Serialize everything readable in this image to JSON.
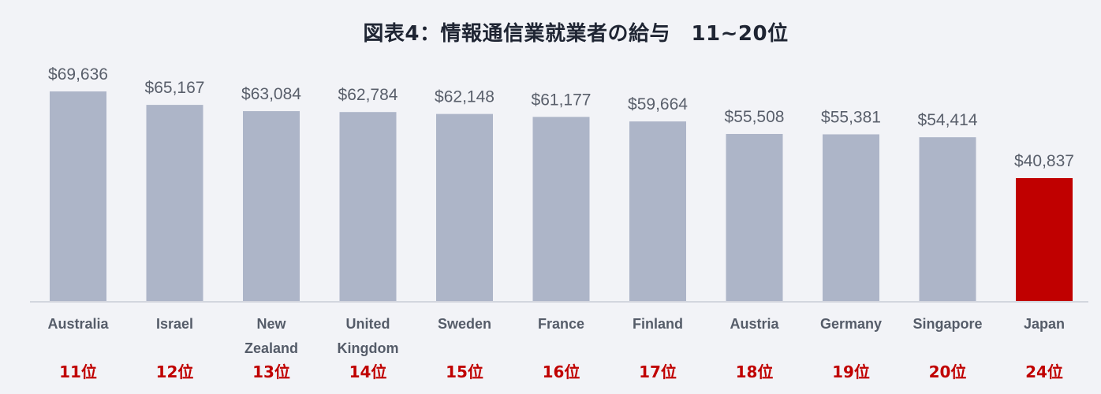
{
  "chart_data": {
    "type": "bar",
    "title": "図表4：情報通信業就業者の給与　11~20位",
    "xlabel": "",
    "ylabel": "",
    "ylim": [
      0,
      72000
    ],
    "grid": false,
    "legend": "none",
    "categories": [
      [
        "Australia"
      ],
      [
        "Israel"
      ],
      [
        "New",
        "Zealand"
      ],
      [
        "United",
        "Kingdom"
      ],
      [
        "Sweden"
      ],
      [
        "France"
      ],
      [
        "Finland"
      ],
      [
        "Austria"
      ],
      [
        "Germany"
      ],
      [
        "Singapore"
      ],
      [
        "Japan"
      ]
    ],
    "ranks": [
      "11位",
      "12位",
      "13位",
      "14位",
      "15位",
      "16位",
      "17位",
      "18位",
      "19位",
      "20位",
      "24位"
    ],
    "values": [
      69636,
      65167,
      63084,
      62784,
      62148,
      61177,
      59664,
      55508,
      55381,
      54414,
      40837
    ],
    "value_labels": [
      "$69,636",
      "$65,167",
      "$63,084",
      "$62,784",
      "$62,148",
      "$61,177",
      "$59,664",
      "$55,508",
      "$55,381",
      "$54,414",
      "$40,837"
    ],
    "highlight_index": 10,
    "colors": {
      "bar": "#adb5c8",
      "highlight": "#c00000",
      "axis": "#d3d6de",
      "rank": "#c00000"
    }
  }
}
